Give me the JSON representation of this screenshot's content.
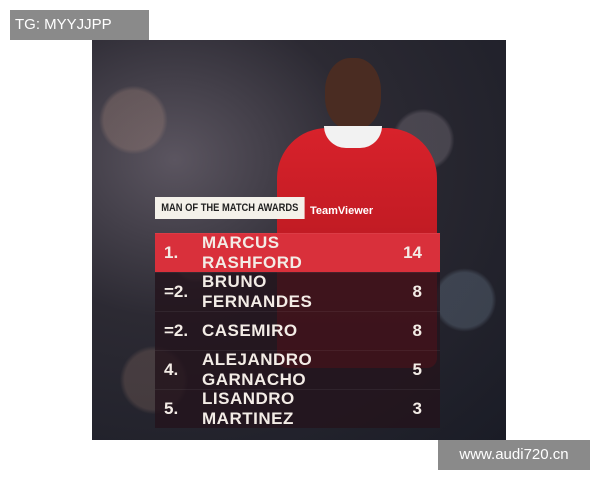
{
  "watermarks": {
    "top": "TG: MYYJJPP",
    "bottom": "www.audi720.cn"
  },
  "graphic": {
    "sponsor": "TeamViewer",
    "title": "MAN OF THE MATCH AWARDS",
    "accent_color": "#d9303b",
    "rows": [
      {
        "rank": "1.",
        "name": "MARCUS RASHFORD",
        "value": "14"
      },
      {
        "rank": "=2.",
        "name": "BRUNO FERNANDES",
        "value": "8"
      },
      {
        "rank": "=2.",
        "name": "CASEMIRO",
        "value": "8"
      },
      {
        "rank": "4.",
        "name": "ALEJANDRO GARNACHO",
        "value": "5"
      },
      {
        "rank": "5.",
        "name": "LISANDRO MARTINEZ",
        "value": "3"
      }
    ]
  }
}
